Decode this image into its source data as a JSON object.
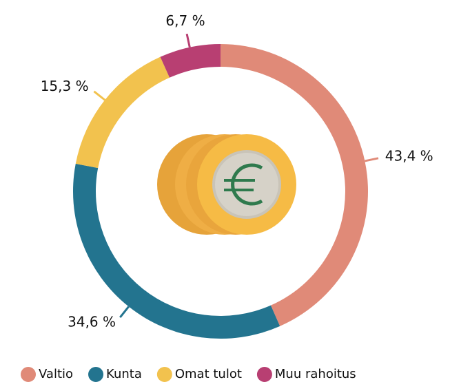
{
  "chart_data": {
    "type": "donut",
    "categories": [
      "Valtio",
      "Kunta",
      "Omat tulot",
      "Muu rahoitus"
    ],
    "values": [
      43.4,
      34.6,
      15.3,
      6.7
    ],
    "value_labels": [
      "43,4 %",
      "34,6 %",
      "15,3 %",
      "6,7 %"
    ],
    "colors": [
      "#e08a78",
      "#23748f",
      "#f2c24e",
      "#b83f72"
    ],
    "legend": "bottom"
  }
}
